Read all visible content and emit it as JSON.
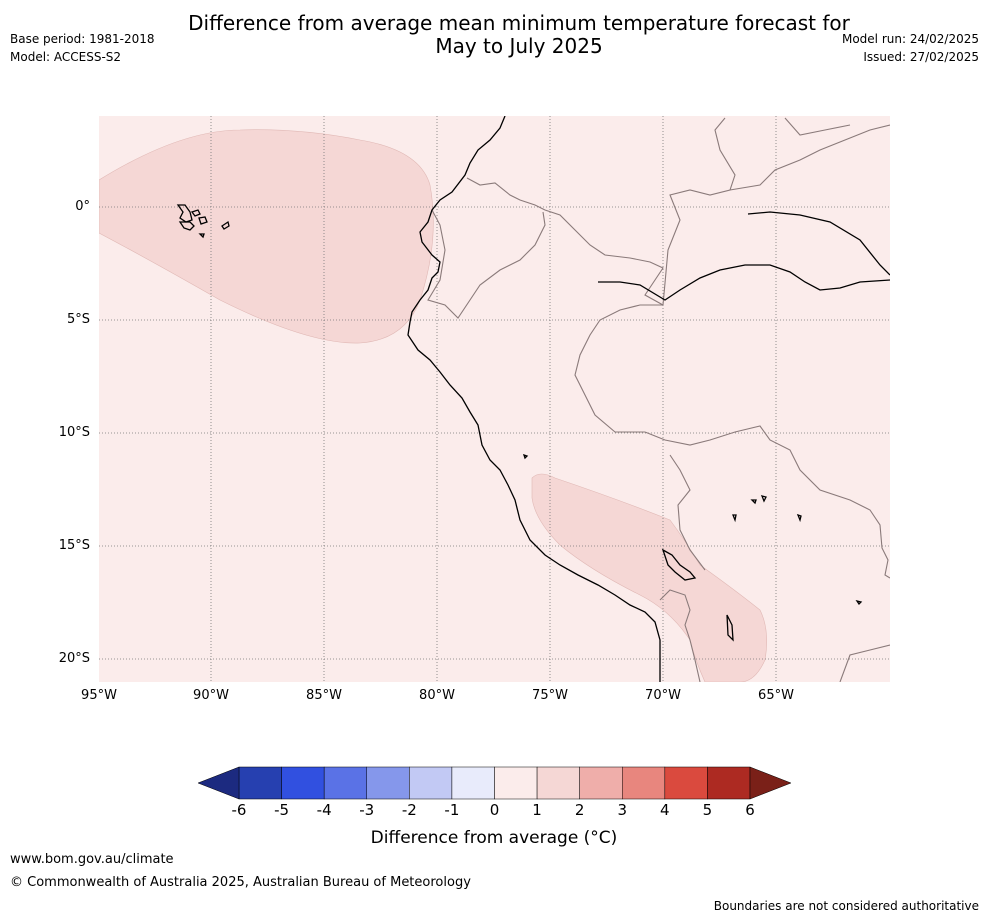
{
  "header": {
    "title_line1": "Difference from average mean minimum temperature forecast for",
    "title_line2": "May to July 2025",
    "base_period": "Base period: 1981-2018",
    "model": "Model: ACCESS-S2",
    "model_run": "Model run: 24/02/2025",
    "issued": "Issued: 27/02/2025"
  },
  "map": {
    "background_color": "#fbeceb",
    "anomaly_fill_color": "#f5d7d5",
    "lat_labels": [
      "0°",
      "5°S",
      "10°S",
      "15°S",
      "20°S"
    ],
    "lon_labels": [
      "95°W",
      "90°W",
      "85°W",
      "80°W",
      "75°W",
      "70°W",
      "65°W"
    ],
    "gridlines": "dotted",
    "features": [
      "coastline",
      "country-borders",
      "galapagos-islands",
      "amazon-river",
      "lake-titicaca"
    ]
  },
  "colorbar": {
    "ticks": [
      "-6",
      "-5",
      "-4",
      "-3",
      "-2",
      "-1",
      "0",
      "1",
      "2",
      "3",
      "4",
      "5",
      "6"
    ],
    "colors": [
      "#2640b0",
      "#3150e0",
      "#5a72e6",
      "#8597eb",
      "#c2c9f4",
      "#e8ebfb",
      "#fbeceb",
      "#f5d7d5",
      "#efaeaa",
      "#e8867e",
      "#da4a3e",
      "#ad2a22"
    ],
    "extend_low_color": "#1c2a80",
    "extend_high_color": "#7a2018",
    "label": "Difference from average (°C)"
  },
  "footer": {
    "website": "www.bom.gov.au/climate",
    "copyright": "© Commonwealth of Australia 2025, Australian Bureau of Meteorology",
    "disclaimer": "Boundaries are not considered authoritative"
  }
}
